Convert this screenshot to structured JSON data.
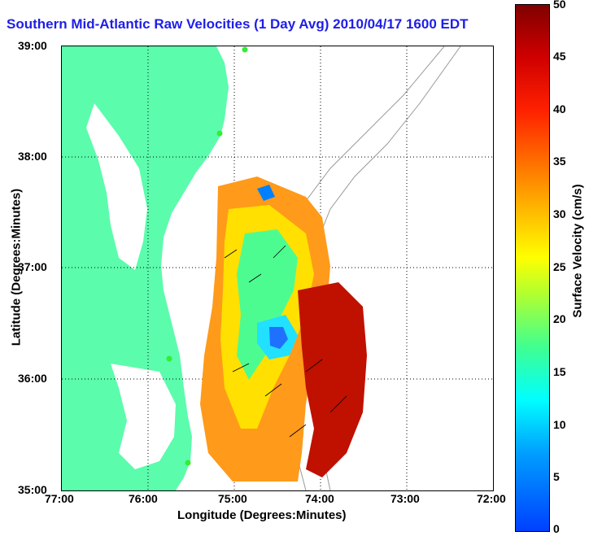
{
  "title": "Southern Mid-Atlantic Raw Velocities (1 Day Avg) 2010/04/17 1600 EDT",
  "x_axis": {
    "label": "Longitude (Degrees:Minutes)",
    "ticks": [
      "77:00",
      "76:00",
      "75:00",
      "74:00",
      "73:00",
      "72:00"
    ]
  },
  "y_axis": {
    "label": "Latitude (Degrees:Minutes)",
    "ticks": [
      "39:00",
      "38:00",
      "37:00",
      "36:00",
      "35:00"
    ]
  },
  "colorbar": {
    "label": "Surface Velocity (cm/s)",
    "ticks": [
      "50",
      "45",
      "40",
      "35",
      "30",
      "25",
      "20",
      "15",
      "10",
      "5",
      "0"
    ],
    "min": 0,
    "max": 50
  },
  "colors": {
    "land": "#5bfcac",
    "title": "#1e1ee8",
    "stations": "#33ee33"
  }
}
